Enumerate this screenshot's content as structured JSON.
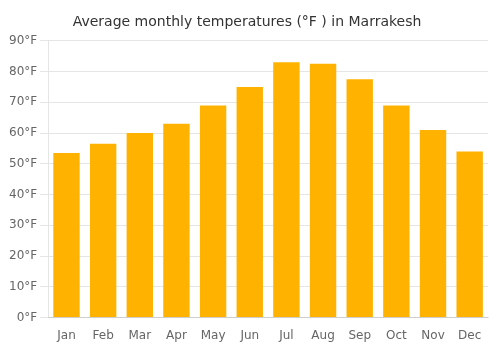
{
  "chart_data": {
    "type": "bar",
    "title": "Average monthly temperatures (°F ) in Marrakesh",
    "categories": [
      "Jan",
      "Feb",
      "Mar",
      "Apr",
      "May",
      "Jun",
      "Jul",
      "Aug",
      "Sep",
      "Oct",
      "Nov",
      "Dec"
    ],
    "values": [
      53.5,
      56.5,
      60.0,
      63.0,
      69.0,
      75.0,
      83.0,
      82.5,
      77.5,
      69.0,
      61.0,
      54.0
    ],
    "color": "#FFB300",
    "ylim": [
      0,
      90
    ],
    "yticks": [
      {
        "value": 0,
        "label": "0°F"
      },
      {
        "value": 10,
        "label": "10°F"
      },
      {
        "value": 20,
        "label": "20°F"
      },
      {
        "value": 30,
        "label": "30°F"
      },
      {
        "value": 40,
        "label": "40°F"
      },
      {
        "value": 50,
        "label": "50°F"
      },
      {
        "value": 60,
        "label": "60°F"
      },
      {
        "value": 70,
        "label": "70°F"
      },
      {
        "value": 80,
        "label": "80°F"
      },
      {
        "value": 90,
        "label": "90°F"
      }
    ],
    "grid": "y"
  }
}
